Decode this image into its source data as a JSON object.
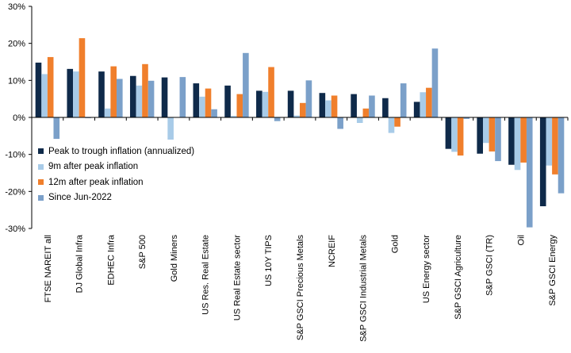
{
  "chart_data": {
    "type": "bar",
    "categories": [
      "FTSE NAREIT all",
      "DJ Global Infra",
      "EDHEC Infra",
      "S&P 500",
      "Gold Miners",
      "US Res. Real Estate",
      "US Real Estate sector",
      "US 10Y TIPS",
      "S&P GSCI Precious Metals",
      "NCREIF",
      "S&P GSCI Industrial Metals",
      "Gold",
      "US Energy sector",
      "S&P GSCI Agriculture",
      "S&P GSCI (TR)",
      "Oil",
      "S&P GSCI Energy"
    ],
    "series": [
      {
        "name": "Peak to trough inflation (annualized)",
        "color": "#0f2a4a",
        "values": [
          14.8,
          13.1,
          12.4,
          11.2,
          10.8,
          9.2,
          8.6,
          7.2,
          7.2,
          6.6,
          6.3,
          5.2,
          4.2,
          -8.5,
          -9.8,
          -12.8,
          -24.0
        ]
      },
      {
        "name": "9m after peak inflation",
        "color": "#a8cbe8",
        "values": [
          11.7,
          12.4,
          2.4,
          8.6,
          -6.0,
          5.6,
          0.4,
          6.9,
          0.5,
          4.6,
          -1.5,
          -4.2,
          6.8,
          -9.3,
          -6.9,
          -14.2,
          -13.0
        ]
      },
      {
        "name": "12m after peak inflation",
        "color": "#f07f2c",
        "values": [
          16.3,
          21.4,
          13.8,
          14.4,
          0.0,
          7.8,
          6.3,
          13.6,
          3.9,
          5.9,
          2.4,
          -2.5,
          8.0,
          -10.3,
          -9.2,
          -12.2,
          -15.4
        ]
      },
      {
        "name": "Since Jun-2022",
        "color": "#7ba0c9",
        "values": [
          -5.8,
          -0.2,
          10.4,
          9.9,
          10.9,
          2.2,
          17.4,
          -1.0,
          10.0,
          -3.1,
          5.9,
          9.2,
          18.6,
          -0.4,
          -11.8,
          -29.7,
          -20.5
        ]
      }
    ],
    "ylim": [
      -30,
      30
    ],
    "yticks": [
      "-30%",
      "-20%",
      "-10%",
      "0%",
      "10%",
      "20%",
      "30%"
    ],
    "ytick_values": [
      -30,
      -20,
      -10,
      0,
      10,
      20,
      30
    ],
    "grid": false,
    "legend_position": "middle-left"
  }
}
